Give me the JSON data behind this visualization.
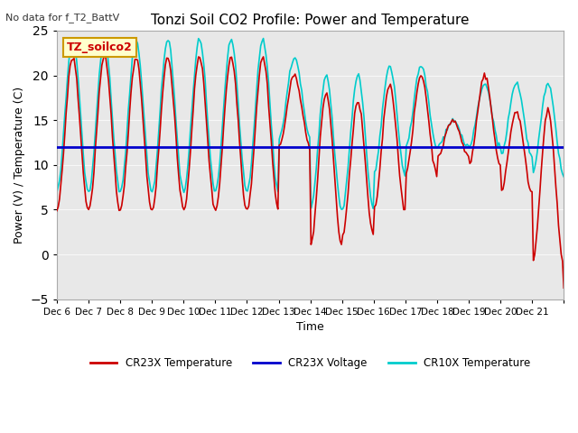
{
  "title": "Tonzi Soil CO2 Profile: Power and Temperature",
  "subtitle": "No data for f_T2_BattV",
  "ylabel": "Power (V) / Temperature (C)",
  "xlabel": "Time",
  "ylim": [
    -5,
    25
  ],
  "yticks": [
    -5,
    0,
    5,
    10,
    15,
    20,
    25
  ],
  "voltage_line": 12.0,
  "voltage_color": "#0000cc",
  "cr23x_color": "#cc0000",
  "cr10x_color": "#00cccc",
  "bg_color": "#e8e8e8",
  "legend_label_cr23x": "CR23X Temperature",
  "legend_label_voltage": "CR23X Voltage",
  "legend_label_cr10x": "CR10X Temperature",
  "annotation_box": "TZ_soilco2",
  "n_days": 16,
  "start_day": 6
}
